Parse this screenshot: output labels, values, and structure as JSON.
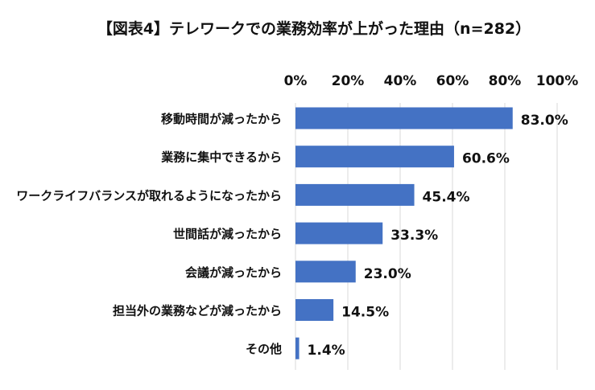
{
  "chart_data": {
    "type": "bar",
    "orientation": "horizontal",
    "title": "【図表4】テレワークでの業務効率が上がった理由（n=282）",
    "categories": [
      "移動時間が減ったから",
      "業務に集中できるから",
      "ワークライフバランスが取れるようになったから",
      "世間話が減ったから",
      "会議が減ったから",
      "担当外の業務などが減ったから",
      "その他"
    ],
    "values": [
      83.0,
      60.6,
      45.4,
      33.3,
      23.0,
      14.5,
      1.4
    ],
    "value_labels": [
      "83.0%",
      "60.6%",
      "45.4%",
      "33.3%",
      "23.0%",
      "14.5%",
      "1.4%"
    ],
    "xticks": [
      0,
      20,
      40,
      60,
      80,
      100
    ],
    "xtick_labels": [
      "0%",
      "20%",
      "40%",
      "60%",
      "80%",
      "100%"
    ],
    "xlim": [
      0,
      100
    ],
    "axis_position": "top",
    "grid": true,
    "bar_color": "#4472c4",
    "grid_color": "#d9d9d9"
  }
}
